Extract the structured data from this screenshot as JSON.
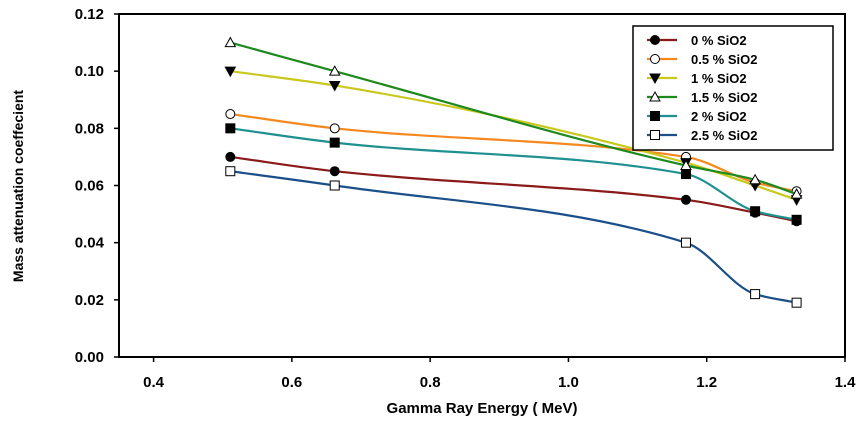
{
  "chart_data": {
    "type": "line",
    "title": "",
    "xlabel": "Gamma Ray Energy ( MeV)",
    "ylabel": "Mass attenuation coeffecient",
    "xlim": [
      0.35,
      1.4
    ],
    "ylim": [
      0.0,
      0.12
    ],
    "x_ticks": [
      "0.4",
      "0.6",
      "0.8",
      "1.0",
      "1.2",
      "1.4"
    ],
    "x_tick_values": [
      0.4,
      0.6,
      0.8,
      1.0,
      1.2,
      1.4
    ],
    "y_ticks": [
      "0.00",
      "0.02",
      "0.04",
      "0.06",
      "0.08",
      "0.10",
      "0.12"
    ],
    "y_tick_values": [
      0.0,
      0.02,
      0.04,
      0.06,
      0.08,
      0.1,
      0.12
    ],
    "grid": false,
    "legend_position": "top-right",
    "series": [
      {
        "name": "0 % SiO2",
        "color": "#8b1a1a",
        "marker": "filled-circle",
        "x": [
          0.511,
          0.662,
          1.17,
          1.27,
          1.33
        ],
        "y": [
          0.07,
          0.065,
          0.055,
          0.0505,
          0.0475
        ]
      },
      {
        "name": "0.5 % SiO2",
        "color": "#f5891f",
        "marker": "open-circle",
        "x": [
          0.511,
          0.662,
          1.17,
          1.27,
          1.33
        ],
        "y": [
          0.085,
          0.08,
          0.07,
          0.061,
          0.058
        ]
      },
      {
        "name": "1 % SiO2",
        "color": "#c8c81e",
        "marker": "filled-triangle-down",
        "x": [
          0.511,
          0.662,
          1.17,
          1.27,
          1.33
        ],
        "y": [
          0.1,
          0.095,
          0.068,
          0.06,
          0.055
        ]
      },
      {
        "name": "1.5 % SiO2",
        "color": "#1e8a1e",
        "marker": "open-triangle-up",
        "x": [
          0.511,
          0.662,
          1.17,
          1.27,
          1.33
        ],
        "y": [
          0.11,
          0.1,
          0.067,
          0.062,
          0.057
        ]
      },
      {
        "name": "2 % SiO2",
        "color": "#1f9090",
        "marker": "filled-square",
        "x": [
          0.511,
          0.662,
          1.17,
          1.27,
          1.33
        ],
        "y": [
          0.08,
          0.075,
          0.064,
          0.051,
          0.048
        ]
      },
      {
        "name": "2.5 % SiO2",
        "color": "#1a4f8a",
        "marker": "open-square",
        "x": [
          0.511,
          0.662,
          1.17,
          1.27,
          1.33
        ],
        "y": [
          0.065,
          0.06,
          0.04,
          0.022,
          0.019
        ]
      }
    ]
  }
}
